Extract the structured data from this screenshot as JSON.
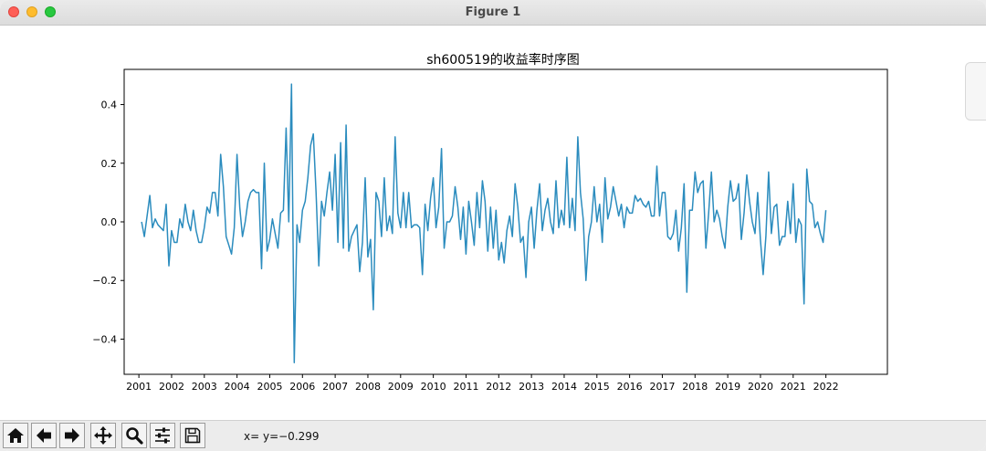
{
  "window": {
    "title": "Figure 1"
  },
  "toolbar": {
    "buttons": [
      {
        "name": "home-icon"
      },
      {
        "name": "arrow-left-icon"
      },
      {
        "name": "arrow-right-icon"
      },
      {
        "name": "move-icon"
      },
      {
        "name": "zoom-icon"
      },
      {
        "name": "sliders-icon"
      },
      {
        "name": "save-icon"
      }
    ],
    "coord_readout": "x= y=−0.299"
  },
  "colors": {
    "line": "#2b8cbe"
  },
  "chart_data": {
    "type": "line",
    "title": "sh600519的收益率时序图",
    "xlabel": "",
    "ylabel": "",
    "xlim": [
      2000.55,
      2023.88
    ],
    "ylim": [
      -0.52,
      0.52
    ],
    "xticks": [
      "2001",
      "2002",
      "2003",
      "2004",
      "2005",
      "2006",
      "2007",
      "2008",
      "2009",
      "2010",
      "2011",
      "2012",
      "2013",
      "2014",
      "2015",
      "2016",
      "2017",
      "2018",
      "2019",
      "2020",
      "2021",
      "2022"
    ],
    "yticks": [
      "0.4",
      "0.2",
      "0.0",
      "−0.2",
      "−0.4"
    ],
    "ytick_values": [
      0.4,
      0.2,
      0.0,
      -0.2,
      -0.4
    ],
    "series": [
      {
        "x_start": 2001.083,
        "x_step": 0.08333,
        "values": [
          0.0,
          -0.05,
          0.02,
          0.09,
          -0.02,
          0.01,
          -0.01,
          -0.02,
          -0.03,
          0.06,
          -0.15,
          -0.03,
          -0.07,
          -0.07,
          0.01,
          -0.02,
          0.06,
          0.0,
          -0.03,
          0.04,
          -0.03,
          -0.07,
          -0.07,
          -0.02,
          0.05,
          0.03,
          0.1,
          0.1,
          0.02,
          0.23,
          0.12,
          -0.05,
          -0.08,
          -0.11,
          -0.02,
          0.23,
          0.05,
          -0.05,
          0.0,
          0.07,
          0.1,
          0.11,
          0.1,
          0.1,
          -0.16,
          0.2,
          -0.1,
          -0.06,
          0.01,
          -0.04,
          -0.09,
          0.03,
          0.04,
          0.32,
          0.0,
          0.47,
          -0.48,
          -0.01,
          -0.07,
          0.04,
          0.07,
          0.15,
          0.26,
          0.3,
          0.1,
          -0.15,
          0.07,
          0.02,
          0.1,
          0.17,
          0.04,
          0.23,
          -0.07,
          0.27,
          -0.09,
          0.33,
          -0.1,
          -0.05,
          -0.03,
          -0.01,
          -0.17,
          -0.07,
          0.15,
          -0.12,
          -0.06,
          -0.3,
          0.1,
          0.07,
          -0.05,
          0.15,
          -0.03,
          0.02,
          -0.04,
          0.29,
          0.03,
          -0.02,
          0.1,
          -0.02,
          0.1,
          -0.02,
          -0.01,
          -0.01,
          -0.02,
          -0.18,
          0.06,
          -0.03,
          0.08,
          0.15,
          -0.02,
          0.05,
          0.25,
          -0.09,
          0.0,
          0.0,
          0.02,
          0.12,
          0.05,
          -0.06,
          0.05,
          -0.11,
          0.07,
          0.0,
          -0.08,
          0.1,
          -0.02,
          0.14,
          0.07,
          -0.1,
          0.05,
          -0.09,
          0.04,
          -0.13,
          -0.07,
          -0.14,
          -0.03,
          0.02,
          -0.05,
          0.13,
          0.05,
          -0.07,
          -0.05,
          -0.19,
          0.0,
          0.05,
          -0.09,
          0.04,
          0.13,
          -0.03,
          0.04,
          0.08,
          0.0,
          -0.04,
          0.14,
          -0.02,
          0.04,
          -0.01,
          0.22,
          -0.02,
          0.08,
          -0.03,
          0.29,
          0.1,
          0.01,
          -0.2,
          -0.05,
          0.0,
          0.12,
          0.0,
          0.06,
          -0.07,
          0.15,
          0.01,
          0.05,
          0.12,
          0.07,
          0.02,
          0.06,
          -0.02,
          0.05,
          0.03,
          0.03,
          0.09,
          0.07,
          0.08,
          0.06,
          0.05,
          0.07,
          0.02,
          0.02,
          0.19,
          0.02,
          0.1,
          0.1,
          -0.05,
          -0.06,
          -0.04,
          0.04,
          -0.1,
          -0.02,
          0.13,
          -0.24,
          0.04,
          0.04,
          0.17,
          0.1,
          0.13,
          0.14,
          -0.09,
          0.03,
          0.17,
          0.0,
          0.04,
          0.01,
          -0.05,
          -0.09,
          0.05,
          0.14,
          0.07,
          0.08,
          0.13,
          -0.06,
          0.03,
          0.16,
          0.07,
          0.0,
          -0.04,
          0.1,
          -0.06,
          -0.18,
          -0.05,
          0.17,
          -0.04,
          0.05,
          0.06,
          -0.08,
          -0.05,
          -0.05,
          0.07,
          -0.04,
          0.13,
          -0.07,
          0.01,
          -0.01,
          -0.28,
          0.18,
          0.07,
          0.06,
          -0.02,
          0.0,
          -0.04,
          -0.07,
          0.04
        ]
      }
    ]
  }
}
